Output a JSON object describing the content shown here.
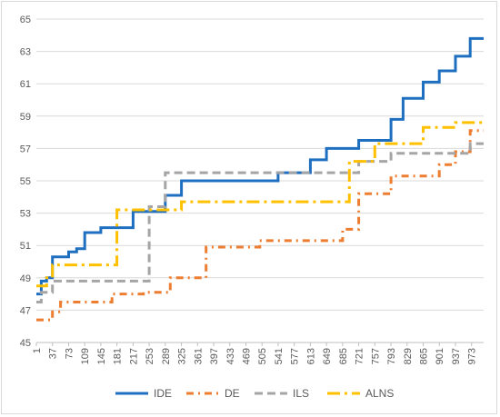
{
  "chart_data": {
    "type": "line",
    "title": "",
    "xlabel": "",
    "ylabel": "",
    "ylim": [
      45,
      65
    ],
    "xlim": [
      1,
      1000
    ],
    "y_ticks": [
      "45",
      "47",
      "49",
      "51",
      "53",
      "55",
      "57",
      "59",
      "61",
      "63",
      "65"
    ],
    "x_ticks": [
      "1",
      "37",
      "73",
      "109",
      "145",
      "181",
      "217",
      "253",
      "289",
      "325",
      "361",
      "397",
      "433",
      "469",
      "505",
      "541",
      "577",
      "613",
      "649",
      "685",
      "721",
      "757",
      "793",
      "829",
      "865",
      "901",
      "937",
      "973"
    ],
    "grid": "horizontal",
    "legend_position": "bottom",
    "series": [
      {
        "name": "IDE",
        "color": "#1f6fc1",
        "style": "solid",
        "points": [
          [
            1,
            48.0
          ],
          [
            12,
            48.8
          ],
          [
            24,
            49.0
          ],
          [
            37,
            50.3
          ],
          [
            73,
            50.6
          ],
          [
            91,
            50.8
          ],
          [
            109,
            51.8
          ],
          [
            145,
            52.1
          ],
          [
            217,
            53.1
          ],
          [
            289,
            54.1
          ],
          [
            325,
            55.0
          ],
          [
            541,
            55.5
          ],
          [
            613,
            56.3
          ],
          [
            649,
            57.0
          ],
          [
            721,
            57.5
          ],
          [
            793,
            58.8
          ],
          [
            820,
            60.1
          ],
          [
            865,
            61.1
          ],
          [
            901,
            61.8
          ],
          [
            937,
            62.7
          ],
          [
            970,
            63.8
          ],
          [
            1000,
            63.8
          ]
        ]
      },
      {
        "name": "DE",
        "color": "#ed7d31",
        "style": "dash-dot",
        "points": [
          [
            1,
            46.4
          ],
          [
            37,
            46.9
          ],
          [
            55,
            47.5
          ],
          [
            170,
            48.0
          ],
          [
            240,
            48.1
          ],
          [
            300,
            49.0
          ],
          [
            380,
            50.9
          ],
          [
            500,
            51.3
          ],
          [
            685,
            52.0
          ],
          [
            721,
            54.2
          ],
          [
            793,
            55.3
          ],
          [
            865,
            55.3
          ],
          [
            901,
            56.0
          ],
          [
            937,
            56.8
          ],
          [
            970,
            58.1
          ],
          [
            1000,
            58.1
          ]
        ]
      },
      {
        "name": "ILS",
        "color": "#a5a5a5",
        "style": "dashed",
        "points": [
          [
            1,
            47.5
          ],
          [
            12,
            48.1
          ],
          [
            37,
            48.8
          ],
          [
            240,
            48.8
          ],
          [
            253,
            53.4
          ],
          [
            289,
            55.5
          ],
          [
            685,
            55.5
          ],
          [
            721,
            56.2
          ],
          [
            793,
            56.7
          ],
          [
            937,
            56.7
          ],
          [
            970,
            57.3
          ],
          [
            1000,
            57.3
          ]
        ]
      },
      {
        "name": "ALNS",
        "color": "#ffc000",
        "style": "long-dash-dot",
        "points": [
          [
            1,
            48.5
          ],
          [
            24,
            49.0
          ],
          [
            37,
            49.8
          ],
          [
            160,
            49.8
          ],
          [
            181,
            53.2
          ],
          [
            289,
            53.2
          ],
          [
            325,
            53.7
          ],
          [
            630,
            53.7
          ],
          [
            700,
            56.2
          ],
          [
            757,
            57.3
          ],
          [
            865,
            58.3
          ],
          [
            937,
            58.6
          ],
          [
            1000,
            58.6
          ]
        ]
      }
    ]
  }
}
